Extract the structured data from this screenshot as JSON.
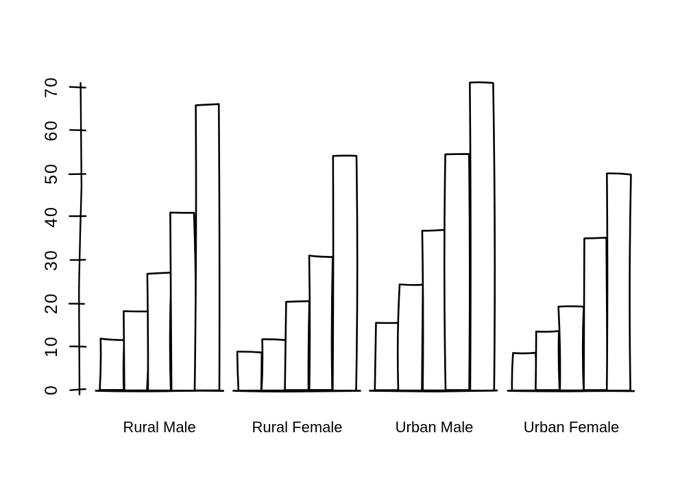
{
  "figure": {
    "background_color": "#ffffff",
    "line_color": "#000000",
    "bar_fill_color": "#ffffff",
    "style": "hand-drawn-sketch"
  },
  "chart_data": {
    "type": "bar",
    "title": "",
    "xlabel": "",
    "ylabel": "",
    "legend": false,
    "grid": false,
    "categories": [
      "Rural Male",
      "Rural Female",
      "Urban Male",
      "Urban Female"
    ],
    "bars_per_group": 5,
    "groups": [
      {
        "label": "Rural Male",
        "values": [
          11.7,
          18.1,
          26.9,
          41.0,
          66.0
        ]
      },
      {
        "label": "Rural Female",
        "values": [
          8.7,
          11.7,
          20.3,
          30.9,
          54.3
        ]
      },
      {
        "label": "Urban Male",
        "values": [
          15.4,
          24.3,
          37.0,
          54.6,
          71.1
        ]
      },
      {
        "label": "Urban Female",
        "values": [
          8.4,
          13.6,
          19.3,
          35.1,
          50.0
        ]
      }
    ],
    "y_axis": {
      "tick_values": [
        0,
        10,
        20,
        30,
        40,
        50,
        60,
        70
      ],
      "tick_labels": [
        "0",
        "10",
        "20",
        "30",
        "40",
        "50",
        "60",
        "70"
      ],
      "range": [
        0,
        71.1
      ]
    }
  }
}
